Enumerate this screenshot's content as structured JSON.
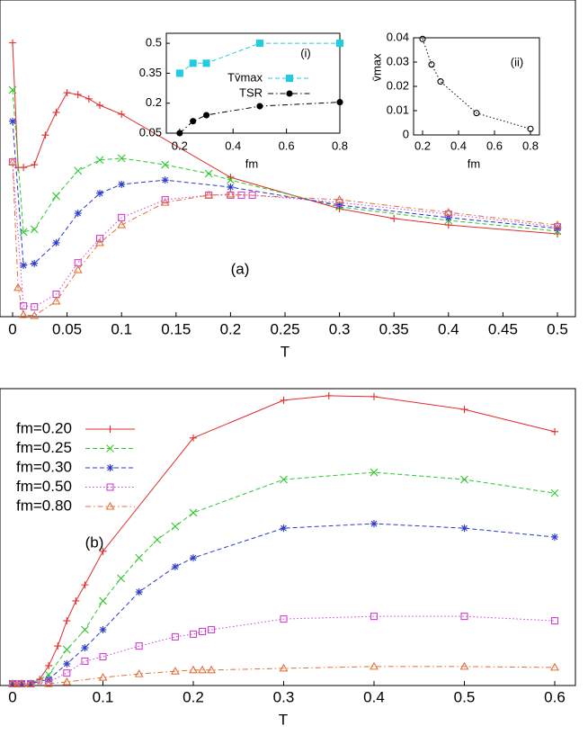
{
  "chart_data": [
    {
      "type": "line",
      "annotation": "(a)",
      "x_label": "T",
      "xlim": [
        0,
        0.5
      ],
      "ylim": [
        0,
        1
      ],
      "xticks": [
        0,
        0.05,
        0.1,
        0.15,
        0.2,
        0.25,
        0.3,
        0.35,
        0.4,
        0.45,
        0.5
      ],
      "series": [
        {
          "color": "#e32b2b",
          "marker": "plus",
          "dash": "solid",
          "x": [
            0,
            0.005,
            0.01,
            0.02,
            0.03,
            0.04,
            0.05,
            0.06,
            0.07,
            0.08,
            0.1,
            0.2,
            0.3,
            0.35,
            0.4,
            0.5
          ],
          "values": [
            0.89,
            0.485,
            0.485,
            0.494,
            0.59,
            0.664,
            0.728,
            0.722,
            0.708,
            0.687,
            0.658,
            0.453,
            0.351,
            0.319,
            0.298,
            0.269
          ]
        },
        {
          "color": "#2ec82e",
          "marker": "cross",
          "dash": "dashed",
          "x": [
            0,
            0.01,
            0.02,
            0.04,
            0.06,
            0.08,
            0.1,
            0.14,
            0.18,
            0.2,
            0.3,
            0.4,
            0.5
          ],
          "values": [
            0.737,
            0.275,
            0.284,
            0.392,
            0.474,
            0.509,
            0.515,
            0.494,
            0.465,
            0.444,
            0.357,
            0.313,
            0.278
          ]
        },
        {
          "color": "#2a3bcc",
          "marker": "star",
          "dash": "dashed",
          "x": [
            0,
            0.01,
            0.02,
            0.04,
            0.06,
            0.08,
            0.1,
            0.14,
            0.2,
            0.3,
            0.4,
            0.5
          ],
          "values": [
            0.635,
            0.167,
            0.173,
            0.24,
            0.336,
            0.401,
            0.43,
            0.444,
            0.421,
            0.363,
            0.322,
            0.287
          ]
        },
        {
          "color": "#d040d0",
          "marker": "square",
          "dash": "dotted",
          "x": [
            0,
            0.01,
            0.02,
            0.04,
            0.06,
            0.08,
            0.1,
            0.14,
            0.18,
            0.2,
            0.21,
            0.22,
            0.3,
            0.4,
            0.5
          ],
          "values": [
            0.503,
            0.035,
            0.032,
            0.073,
            0.175,
            0.254,
            0.322,
            0.38,
            0.395,
            0.395,
            0.395,
            0.395,
            0.371,
            0.333,
            0.292
          ]
        },
        {
          "color": "#e0703a",
          "marker": "triangle",
          "dash": "dashdot",
          "x": [
            0,
            0.005,
            0.01,
            0.02,
            0.04,
            0.06,
            0.08,
            0.1,
            0.14,
            0.18,
            0.2,
            0.3,
            0.4,
            0.5
          ],
          "values": [
            0.503,
            0.094,
            0.006,
            0.003,
            0.05,
            0.152,
            0.24,
            0.298,
            0.371,
            0.395,
            0.398,
            0.38,
            0.339,
            0.298
          ]
        }
      ]
    },
    {
      "type": "line",
      "annotation": "(i)",
      "x_label": "fm",
      "xlim": [
        0.15,
        0.8
      ],
      "ylim": [
        0.05,
        0.55
      ],
      "xticks": [
        0.2,
        0.4,
        0.6,
        0.8
      ],
      "yticks": [
        0.05,
        0.2,
        0.35,
        0.5
      ],
      "series": [
        {
          "name": "Tv̄max",
          "color": "#22cce0",
          "marker": "square-filled",
          "dash": "dashed",
          "x": [
            0.2,
            0.25,
            0.3,
            0.5,
            0.8
          ],
          "values": [
            0.35,
            0.4,
            0.4,
            0.5,
            0.5
          ]
        },
        {
          "name": "TSR",
          "color": "#000000",
          "marker": "circle-filled",
          "dash": "dashdot",
          "x": [
            0.2,
            0.25,
            0.3,
            0.5,
            0.8
          ],
          "values": [
            0.05,
            0.11,
            0.14,
            0.185,
            0.205
          ]
        }
      ]
    },
    {
      "type": "line",
      "annotation": "(ii)",
      "x_label": "fm",
      "y_label": "v̄max",
      "xlim": [
        0.15,
        0.85
      ],
      "ylim": [
        0,
        0.04
      ],
      "xticks": [
        0.2,
        0.4,
        0.6,
        0.8
      ],
      "yticks": [
        0,
        0.01,
        0.02,
        0.03,
        0.04
      ],
      "series": [
        {
          "color": "#000000",
          "marker": "circle",
          "dash": "dotted",
          "x": [
            0.2,
            0.25,
            0.3,
            0.5,
            0.8
          ],
          "values": [
            0.0395,
            0.029,
            0.022,
            0.009,
            0.0025
          ]
        }
      ]
    },
    {
      "type": "line",
      "annotation": "(b)",
      "x_label": "T",
      "legend": "upper left",
      "xlim": [
        0,
        0.6
      ],
      "ylim": [
        0,
        1
      ],
      "xticks": [
        0,
        0.1,
        0.2,
        0.3,
        0.4,
        0.5,
        0.6
      ],
      "series": [
        {
          "name": "fm=0.20",
          "color": "#e32b2b",
          "marker": "plus",
          "dash": "solid",
          "x": [
            0,
            0.005,
            0.01,
            0.02,
            0.03,
            0.04,
            0.05,
            0.06,
            0.07,
            0.08,
            0.1,
            0.2,
            0.3,
            0.35,
            0.4,
            0.5,
            0.6
          ],
          "values": [
            0.006,
            0.006,
            0.006,
            0.006,
            0.021,
            0.067,
            0.133,
            0.218,
            0.285,
            0.339,
            0.452,
            0.834,
            0.961,
            0.976,
            0.973,
            0.93,
            0.855
          ]
        },
        {
          "name": "fm=0.25",
          "color": "#2ec82e",
          "marker": "cross",
          "dash": "dashed",
          "x": [
            0,
            0.01,
            0.02,
            0.04,
            0.06,
            0.08,
            0.1,
            0.12,
            0.14,
            0.16,
            0.18,
            0.2,
            0.3,
            0.4,
            0.5,
            0.6
          ],
          "values": [
            0.006,
            0.006,
            0.006,
            0.036,
            0.121,
            0.188,
            0.285,
            0.361,
            0.43,
            0.491,
            0.536,
            0.582,
            0.694,
            0.718,
            0.694,
            0.648
          ]
        },
        {
          "name": "fm=0.30",
          "color": "#2a3bcc",
          "marker": "star",
          "dash": "dashed",
          "x": [
            0,
            0.01,
            0.02,
            0.04,
            0.06,
            0.08,
            0.1,
            0.14,
            0.18,
            0.2,
            0.3,
            0.4,
            0.5,
            0.6
          ],
          "values": [
            0.006,
            0.006,
            0.006,
            0.021,
            0.073,
            0.127,
            0.188,
            0.315,
            0.4,
            0.43,
            0.53,
            0.545,
            0.53,
            0.5
          ]
        },
        {
          "name": "fm=0.50",
          "color": "#d040d0",
          "marker": "square",
          "dash": "dotted",
          "x": [
            0,
            0.01,
            0.02,
            0.04,
            0.06,
            0.08,
            0.1,
            0.14,
            0.18,
            0.2,
            0.21,
            0.22,
            0.3,
            0.4,
            0.5,
            0.6
          ],
          "values": [
            0.006,
            0.006,
            0.006,
            0.012,
            0.042,
            0.082,
            0.097,
            0.133,
            0.164,
            0.173,
            0.182,
            0.188,
            0.224,
            0.233,
            0.233,
            0.218
          ]
        },
        {
          "name": "fm=0.80",
          "color": "#e0703a",
          "marker": "triangle",
          "dash": "dashdot",
          "x": [
            0,
            0.01,
            0.02,
            0.04,
            0.06,
            0.1,
            0.14,
            0.18,
            0.2,
            0.21,
            0.22,
            0.3,
            0.4,
            0.5,
            0.6
          ],
          "values": [
            0.006,
            0.006,
            0.006,
            0.006,
            0.012,
            0.027,
            0.039,
            0.048,
            0.052,
            0.052,
            0.052,
            0.058,
            0.064,
            0.064,
            0.061
          ]
        }
      ]
    }
  ]
}
